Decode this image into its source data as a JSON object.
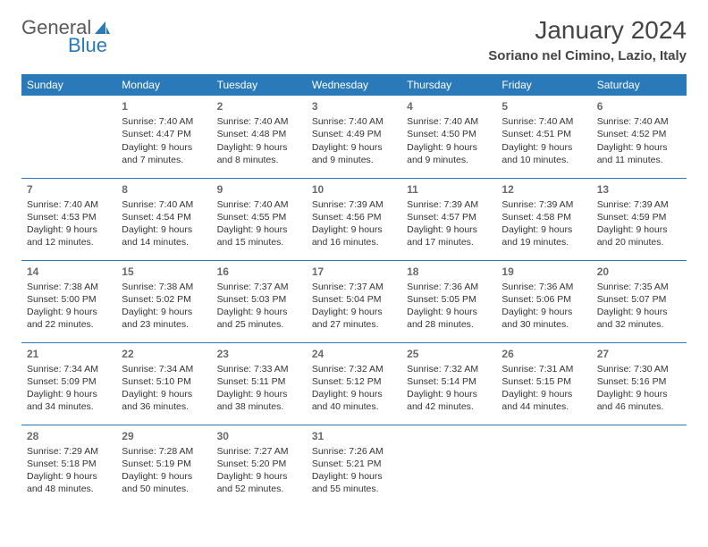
{
  "logo": {
    "text1": "General",
    "text2": "Blue"
  },
  "title": "January 2024",
  "location": "Soriano nel Cimino, Lazio, Italy",
  "colors": {
    "header_bg": "#2a7ab9",
    "header_fg": "#ffffff",
    "border": "#2a7ab9",
    "text": "#333333"
  },
  "weekdays": [
    "Sunday",
    "Monday",
    "Tuesday",
    "Wednesday",
    "Thursday",
    "Friday",
    "Saturday"
  ],
  "weeks": [
    [
      null,
      {
        "n": "1",
        "sr": "7:40 AM",
        "ss": "4:47 PM",
        "dl": "9 hours and 7 minutes."
      },
      {
        "n": "2",
        "sr": "7:40 AM",
        "ss": "4:48 PM",
        "dl": "9 hours and 8 minutes."
      },
      {
        "n": "3",
        "sr": "7:40 AM",
        "ss": "4:49 PM",
        "dl": "9 hours and 9 minutes."
      },
      {
        "n": "4",
        "sr": "7:40 AM",
        "ss": "4:50 PM",
        "dl": "9 hours and 9 minutes."
      },
      {
        "n": "5",
        "sr": "7:40 AM",
        "ss": "4:51 PM",
        "dl": "9 hours and 10 minutes."
      },
      {
        "n": "6",
        "sr": "7:40 AM",
        "ss": "4:52 PM",
        "dl": "9 hours and 11 minutes."
      }
    ],
    [
      {
        "n": "7",
        "sr": "7:40 AM",
        "ss": "4:53 PM",
        "dl": "9 hours and 12 minutes."
      },
      {
        "n": "8",
        "sr": "7:40 AM",
        "ss": "4:54 PM",
        "dl": "9 hours and 14 minutes."
      },
      {
        "n": "9",
        "sr": "7:40 AM",
        "ss": "4:55 PM",
        "dl": "9 hours and 15 minutes."
      },
      {
        "n": "10",
        "sr": "7:39 AM",
        "ss": "4:56 PM",
        "dl": "9 hours and 16 minutes."
      },
      {
        "n": "11",
        "sr": "7:39 AM",
        "ss": "4:57 PM",
        "dl": "9 hours and 17 minutes."
      },
      {
        "n": "12",
        "sr": "7:39 AM",
        "ss": "4:58 PM",
        "dl": "9 hours and 19 minutes."
      },
      {
        "n": "13",
        "sr": "7:39 AM",
        "ss": "4:59 PM",
        "dl": "9 hours and 20 minutes."
      }
    ],
    [
      {
        "n": "14",
        "sr": "7:38 AM",
        "ss": "5:00 PM",
        "dl": "9 hours and 22 minutes."
      },
      {
        "n": "15",
        "sr": "7:38 AM",
        "ss": "5:02 PM",
        "dl": "9 hours and 23 minutes."
      },
      {
        "n": "16",
        "sr": "7:37 AM",
        "ss": "5:03 PM",
        "dl": "9 hours and 25 minutes."
      },
      {
        "n": "17",
        "sr": "7:37 AM",
        "ss": "5:04 PM",
        "dl": "9 hours and 27 minutes."
      },
      {
        "n": "18",
        "sr": "7:36 AM",
        "ss": "5:05 PM",
        "dl": "9 hours and 28 minutes."
      },
      {
        "n": "19",
        "sr": "7:36 AM",
        "ss": "5:06 PM",
        "dl": "9 hours and 30 minutes."
      },
      {
        "n": "20",
        "sr": "7:35 AM",
        "ss": "5:07 PM",
        "dl": "9 hours and 32 minutes."
      }
    ],
    [
      {
        "n": "21",
        "sr": "7:34 AM",
        "ss": "5:09 PM",
        "dl": "9 hours and 34 minutes."
      },
      {
        "n": "22",
        "sr": "7:34 AM",
        "ss": "5:10 PM",
        "dl": "9 hours and 36 minutes."
      },
      {
        "n": "23",
        "sr": "7:33 AM",
        "ss": "5:11 PM",
        "dl": "9 hours and 38 minutes."
      },
      {
        "n": "24",
        "sr": "7:32 AM",
        "ss": "5:12 PM",
        "dl": "9 hours and 40 minutes."
      },
      {
        "n": "25",
        "sr": "7:32 AM",
        "ss": "5:14 PM",
        "dl": "9 hours and 42 minutes."
      },
      {
        "n": "26",
        "sr": "7:31 AM",
        "ss": "5:15 PM",
        "dl": "9 hours and 44 minutes."
      },
      {
        "n": "27",
        "sr": "7:30 AM",
        "ss": "5:16 PM",
        "dl": "9 hours and 46 minutes."
      }
    ],
    [
      {
        "n": "28",
        "sr": "7:29 AM",
        "ss": "5:18 PM",
        "dl": "9 hours and 48 minutes."
      },
      {
        "n": "29",
        "sr": "7:28 AM",
        "ss": "5:19 PM",
        "dl": "9 hours and 50 minutes."
      },
      {
        "n": "30",
        "sr": "7:27 AM",
        "ss": "5:20 PM",
        "dl": "9 hours and 52 minutes."
      },
      {
        "n": "31",
        "sr": "7:26 AM",
        "ss": "5:21 PM",
        "dl": "9 hours and 55 minutes."
      },
      null,
      null,
      null
    ]
  ],
  "labels": {
    "sunrise": "Sunrise:",
    "sunset": "Sunset:",
    "daylight": "Daylight:"
  }
}
